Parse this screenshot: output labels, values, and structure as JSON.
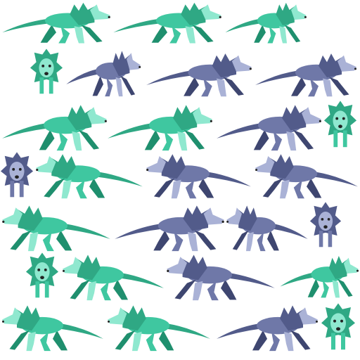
{
  "sheet": {
    "background": "#ffffff",
    "palette": {
      "teal": {
        "base": "#3fc7a0",
        "dark": "#1f8f6e",
        "light": "#8fe8cf",
        "mane": "#2fa884"
      },
      "blue": {
        "base": "#6f78a8",
        "dark": "#3e4670",
        "light": "#aab2d6",
        "mane": "#525b8a"
      }
    },
    "sprites": [
      {
        "color": "teal",
        "pose": "run-right"
      },
      {
        "color": "teal",
        "pose": "run-right"
      },
      {
        "color": "teal",
        "pose": "run-right"
      },
      {
        "color": "teal",
        "pose": "front"
      },
      {
        "color": "blue",
        "pose": "run-right"
      },
      {
        "color": "blue",
        "pose": "run-right"
      },
      {
        "color": "blue",
        "pose": "run-right"
      },
      {
        "color": "teal",
        "pose": "run-right"
      },
      {
        "color": "teal",
        "pose": "run-right"
      },
      {
        "color": "blue",
        "pose": "run-right"
      },
      {
        "color": "teal",
        "pose": "front"
      },
      {
        "color": "blue",
        "pose": "front"
      },
      {
        "color": "teal",
        "pose": "run-left"
      },
      {
        "color": "blue",
        "pose": "run-left"
      },
      {
        "color": "blue",
        "pose": "run-left"
      },
      {
        "color": "teal",
        "pose": "run-left"
      },
      {
        "color": "blue",
        "pose": "run-right"
      },
      {
        "color": "blue",
        "pose": "run-left"
      },
      {
        "color": "blue",
        "pose": "front"
      },
      {
        "color": "teal",
        "pose": "front"
      },
      {
        "color": "teal",
        "pose": "run-left"
      },
      {
        "color": "blue",
        "pose": "run-left"
      },
      {
        "color": "teal",
        "pose": "run-right"
      },
      {
        "color": "teal",
        "pose": "run-left"
      },
      {
        "color": "teal",
        "pose": "run-left"
      },
      {
        "color": "blue",
        "pose": "run-right"
      },
      {
        "color": "teal",
        "pose": "front"
      }
    ]
  }
}
